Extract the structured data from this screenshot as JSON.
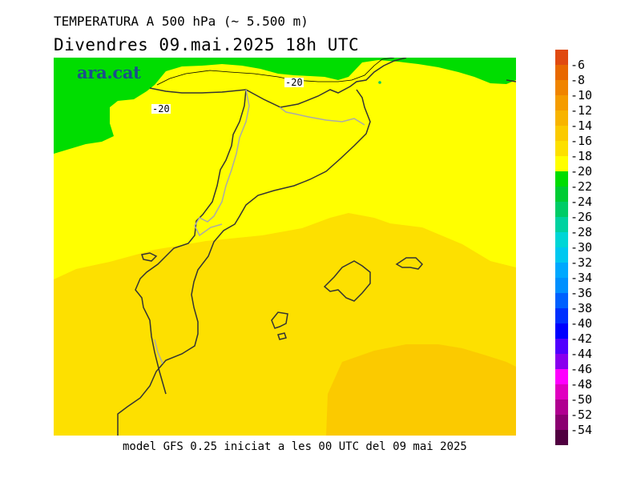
{
  "header": {
    "title": "TEMPERATURA A 500 hPa (~ 5.500 m)",
    "subtitle": "Divendres  09.mai.2025  18h  UTC"
  },
  "map": {
    "brand": "ara.cat",
    "contour_labels": [
      "-20",
      "-20"
    ]
  },
  "footer": {
    "model_run": "model GFS 0.25 iniciat a les 00 UTC del 09 mai 2025"
  },
  "legend": {
    "labels": [
      "-6",
      "-8",
      "-10",
      "-12",
      "-14",
      "-16",
      "-18",
      "-20",
      "-22",
      "-24",
      "-26",
      "-28",
      "-30",
      "-32",
      "-34",
      "-36",
      "-38",
      "-40",
      "-42",
      "-44",
      "-46",
      "-48",
      "-50",
      "-52",
      "-54"
    ],
    "colors": [
      "#e04a10",
      "#e86800",
      "#f08400",
      "#f59c00",
      "#f8b400",
      "#fbca00",
      "#fde000",
      "#ffff00",
      "#00dd00",
      "#00cc33",
      "#00cc66",
      "#00d2a0",
      "#00d6d6",
      "#00c8f0",
      "#00a8ff",
      "#0090ff",
      "#0060ff",
      "#0030ff",
      "#0000ff",
      "#5000ff",
      "#8800ee",
      "#ff00ff",
      "#e000c0",
      "#b00090",
      "#8a0070",
      "#500040"
    ],
    "map_colors": {
      "green_band": "#00dd00",
      "yellow_band": "#ffff00",
      "light_orange_band": "#fde000",
      "orange_band": "#fbca00"
    }
  }
}
